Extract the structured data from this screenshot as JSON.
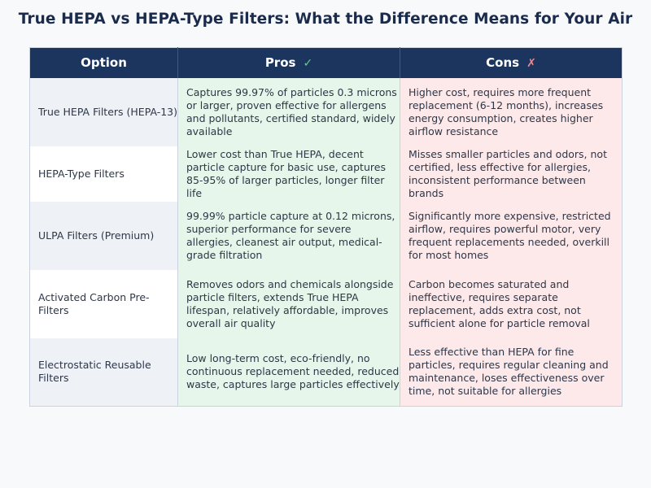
{
  "title": "True HEPA vs HEPA-Type Filters: What the Difference Means for Your Air",
  "colors": {
    "header_bg": "#1c355e",
    "title": "#1a2b4c",
    "pros_bg": "#e6f6ea",
    "cons_bg": "#fde9ea",
    "check": "#5fd08e",
    "cross": "#f08a8a",
    "page_bg": "#f7f9fb"
  },
  "table": {
    "headers": {
      "option": "Option",
      "pros": "Pros",
      "pros_icon": "✓",
      "cons": "Cons",
      "cons_icon": "✗"
    },
    "rows": [
      {
        "option": "True HEPA Filters (HEPA-13)",
        "pros": "Captures 99.97% of particles 0.3 microns or larger, proven effective for allergens and pollutants, certified standard, widely available",
        "cons": "Higher cost, requires more frequent replacement (6-12 months), increases energy consumption, creates higher airflow resistance"
      },
      {
        "option": "HEPA-Type Filters",
        "pros": "Lower cost than True HEPA, decent particle capture for basic use, captures 85-95% of larger particles, longer filter life",
        "cons": "Misses smaller particles and odors, not certified, less effective for allergies, inconsistent performance between brands"
      },
      {
        "option": "ULPA Filters (Premium)",
        "pros": "99.99% particle capture at 0.12 microns, superior performance for severe allergies, cleanest air output, medical-grade filtration",
        "cons": "Significantly more expensive, restricted airflow, requires powerful motor, very frequent replacements needed, overkill for most homes"
      },
      {
        "option": "Activated Carbon Pre-Filters",
        "pros": "Removes odors and chemicals alongside particle filters, extends True HEPA lifespan, relatively affordable, improves overall air quality",
        "cons": "Carbon becomes saturated and ineffective, requires separate replacement, adds extra cost, not sufficient alone for particle removal"
      },
      {
        "option": "Electrostatic Reusable Filters",
        "pros": "Low long-term cost, eco-friendly, no continuous replacement needed, reduced waste, captures large particles effectively",
        "cons": "Less effective than HEPA for fine particles, requires regular cleaning and maintenance, loses effectiveness over time, not suitable for allergies"
      }
    ]
  }
}
